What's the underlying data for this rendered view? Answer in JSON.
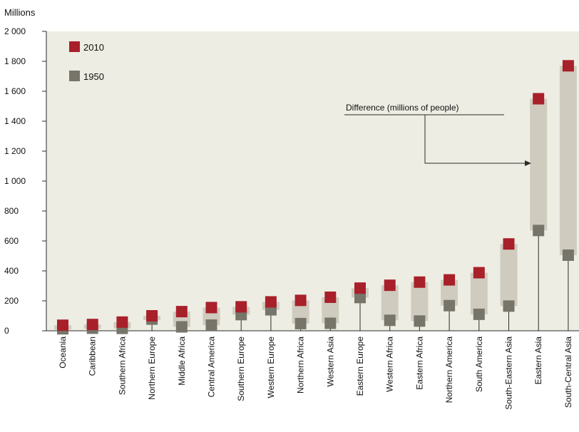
{
  "chart_data": {
    "type": "range-dot",
    "unit_label": "Millions",
    "ylim": [
      0,
      2000
    ],
    "y_ticks": [
      0,
      200,
      400,
      600,
      800,
      1000,
      1200,
      1400,
      1600,
      1800,
      2000
    ],
    "y_tick_labels": [
      "0",
      "200",
      "400",
      "600",
      "800",
      "1 000",
      "1 200",
      "1 400",
      "1 600",
      "1 800",
      "2 000"
    ],
    "grid": false,
    "legend_position": "top-left",
    "annotation": "Difference (millions of people)",
    "categories": [
      "Oceania",
      "Caribbean",
      "Southern Africa",
      "Northern Europe",
      "Middle Africa",
      "Central America",
      "Southern Europe",
      "Western Europe",
      "Northern Africa",
      "Western Asia",
      "Eastern Europe",
      "Western Africa",
      "Eastern Africa",
      "Northern America",
      "South America",
      "South-Eastern Asia",
      "Eastern Asia",
      "South-Central Asia"
    ],
    "series": [
      {
        "name": "2010",
        "values": [
          37,
          42,
          58,
          100,
          128,
          155,
          160,
          193,
          203,
          224,
          285,
          304,
          325,
          340,
          388,
          580,
          1550,
          1770
        ]
      },
      {
        "name": "1950",
        "values": [
          13,
          17,
          16,
          78,
          26,
          38,
          108,
          140,
          48,
          50,
          222,
          70,
          65,
          168,
          110,
          165,
          670,
          505
        ]
      }
    ],
    "colors": {
      "y2010": "#a8202a",
      "y1950": "#77756a",
      "range": "#cfccbf",
      "background": "#eeede3",
      "line": "#2b2b2b"
    }
  }
}
